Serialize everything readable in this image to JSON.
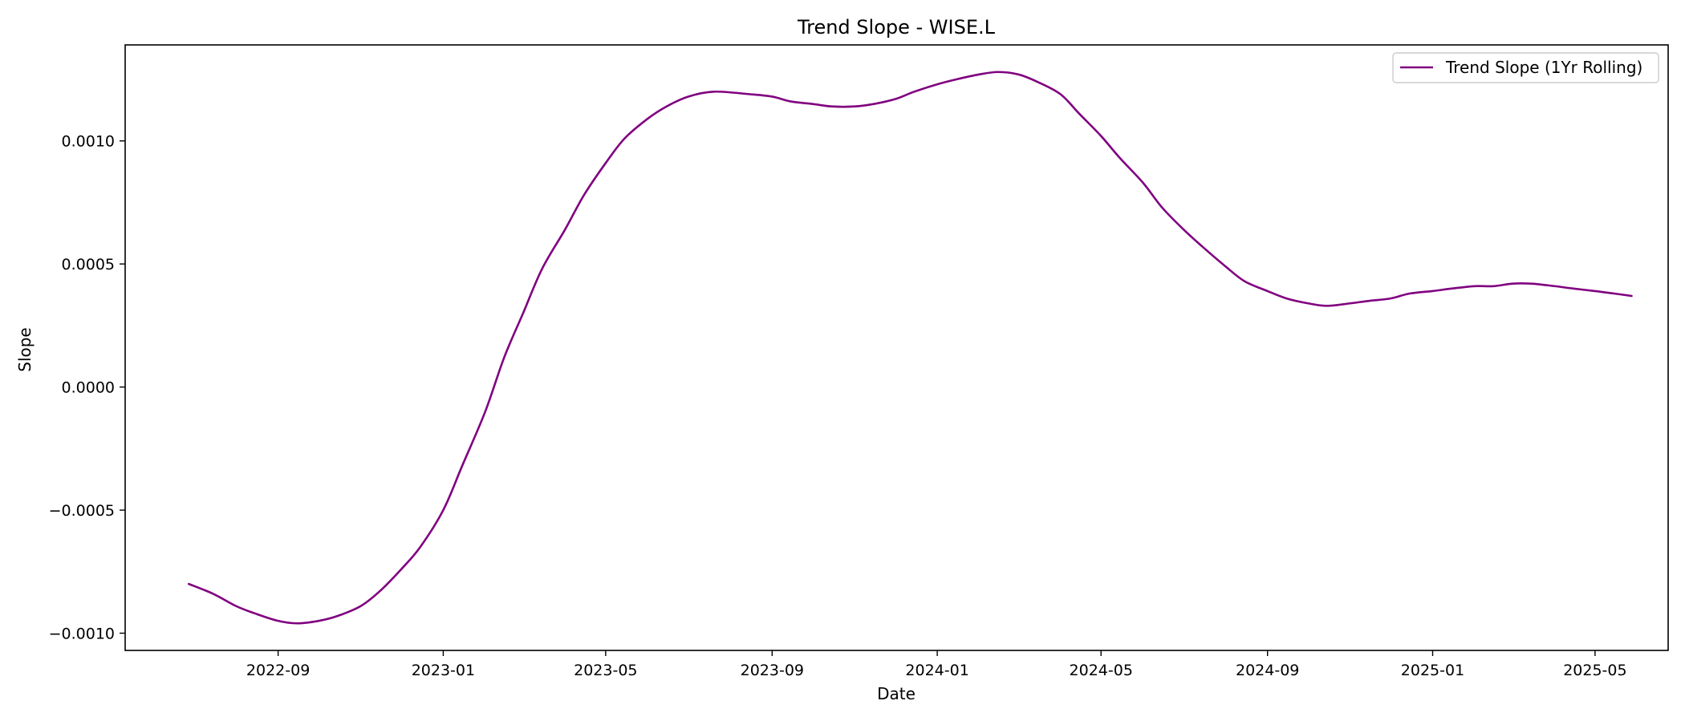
{
  "chart_data": {
    "type": "line",
    "title": "Trend Slope - WISE.L",
    "xlabel": "Date",
    "ylabel": "Slope",
    "xlim": [
      "2022-05-11",
      "2025-06-24"
    ],
    "ylim": [
      -0.00107,
      0.00139
    ],
    "x_ticks": [
      "2022-09",
      "2023-01",
      "2023-05",
      "2023-09",
      "2024-01",
      "2024-05",
      "2024-09",
      "2025-01",
      "2025-05"
    ],
    "y_ticks": [
      -0.001,
      -0.0005,
      0.0,
      0.0005,
      0.001
    ],
    "y_tick_labels": [
      "−0.0010",
      "−0.0005",
      "0.0000",
      "0.0005",
      "0.0010"
    ],
    "grid": false,
    "legend_position": "top-right",
    "colors": {
      "series": "#800080"
    },
    "series": [
      {
        "name": "Trend Slope (1Yr Rolling)",
        "x": [
          "2022-06-27",
          "2022-07-15",
          "2022-08-01",
          "2022-08-15",
          "2022-09-01",
          "2022-09-15",
          "2022-10-01",
          "2022-10-15",
          "2022-11-01",
          "2022-11-15",
          "2022-12-01",
          "2022-12-15",
          "2023-01-01",
          "2023-01-15",
          "2023-02-01",
          "2023-02-15",
          "2023-03-01",
          "2023-03-15",
          "2023-04-01",
          "2023-04-15",
          "2023-05-01",
          "2023-05-15",
          "2023-06-01",
          "2023-06-15",
          "2023-07-01",
          "2023-07-20",
          "2023-08-15",
          "2023-09-01",
          "2023-09-15",
          "2023-10-01",
          "2023-10-15",
          "2023-11-01",
          "2023-11-15",
          "2023-12-01",
          "2023-12-15",
          "2024-01-01",
          "2024-01-15",
          "2024-02-01",
          "2024-02-15",
          "2024-03-01",
          "2024-03-15",
          "2024-04-01",
          "2024-04-15",
          "2024-05-01",
          "2024-05-15",
          "2024-06-01",
          "2024-06-15",
          "2024-07-01",
          "2024-07-15",
          "2024-08-01",
          "2024-08-15",
          "2024-09-01",
          "2024-09-15",
          "2024-10-01",
          "2024-10-15",
          "2024-11-01",
          "2024-11-15",
          "2024-12-01",
          "2024-12-15",
          "2025-01-01",
          "2025-01-15",
          "2025-02-01",
          "2025-02-15",
          "2025-03-01",
          "2025-03-15",
          "2025-04-01",
          "2025-04-15",
          "2025-05-01",
          "2025-05-15",
          "2025-05-28"
        ],
        "y": [
          -0.0008,
          -0.00084,
          -0.00089,
          -0.00092,
          -0.00095,
          -0.00096,
          -0.00095,
          -0.00093,
          -0.00089,
          -0.00083,
          -0.00074,
          -0.00065,
          -0.0005,
          -0.00032,
          -0.0001,
          0.00012,
          0.0003,
          0.00048,
          0.00064,
          0.00078,
          0.00091,
          0.00101,
          0.00109,
          0.00114,
          0.00118,
          0.0012,
          0.00119,
          0.00118,
          0.00116,
          0.00115,
          0.00114,
          0.00114,
          0.00115,
          0.00117,
          0.0012,
          0.00123,
          0.00125,
          0.00127,
          0.00128,
          0.00127,
          0.00124,
          0.00119,
          0.00111,
          0.00102,
          0.00093,
          0.00083,
          0.00073,
          0.00064,
          0.00057,
          0.00049,
          0.00043,
          0.00039,
          0.00036,
          0.00034,
          0.00033,
          0.00034,
          0.00035,
          0.00036,
          0.00038,
          0.00039,
          0.0004,
          0.00041,
          0.00041,
          0.00042,
          0.00042,
          0.00041,
          0.0004,
          0.00039,
          0.00038,
          0.00037
        ]
      }
    ]
  }
}
